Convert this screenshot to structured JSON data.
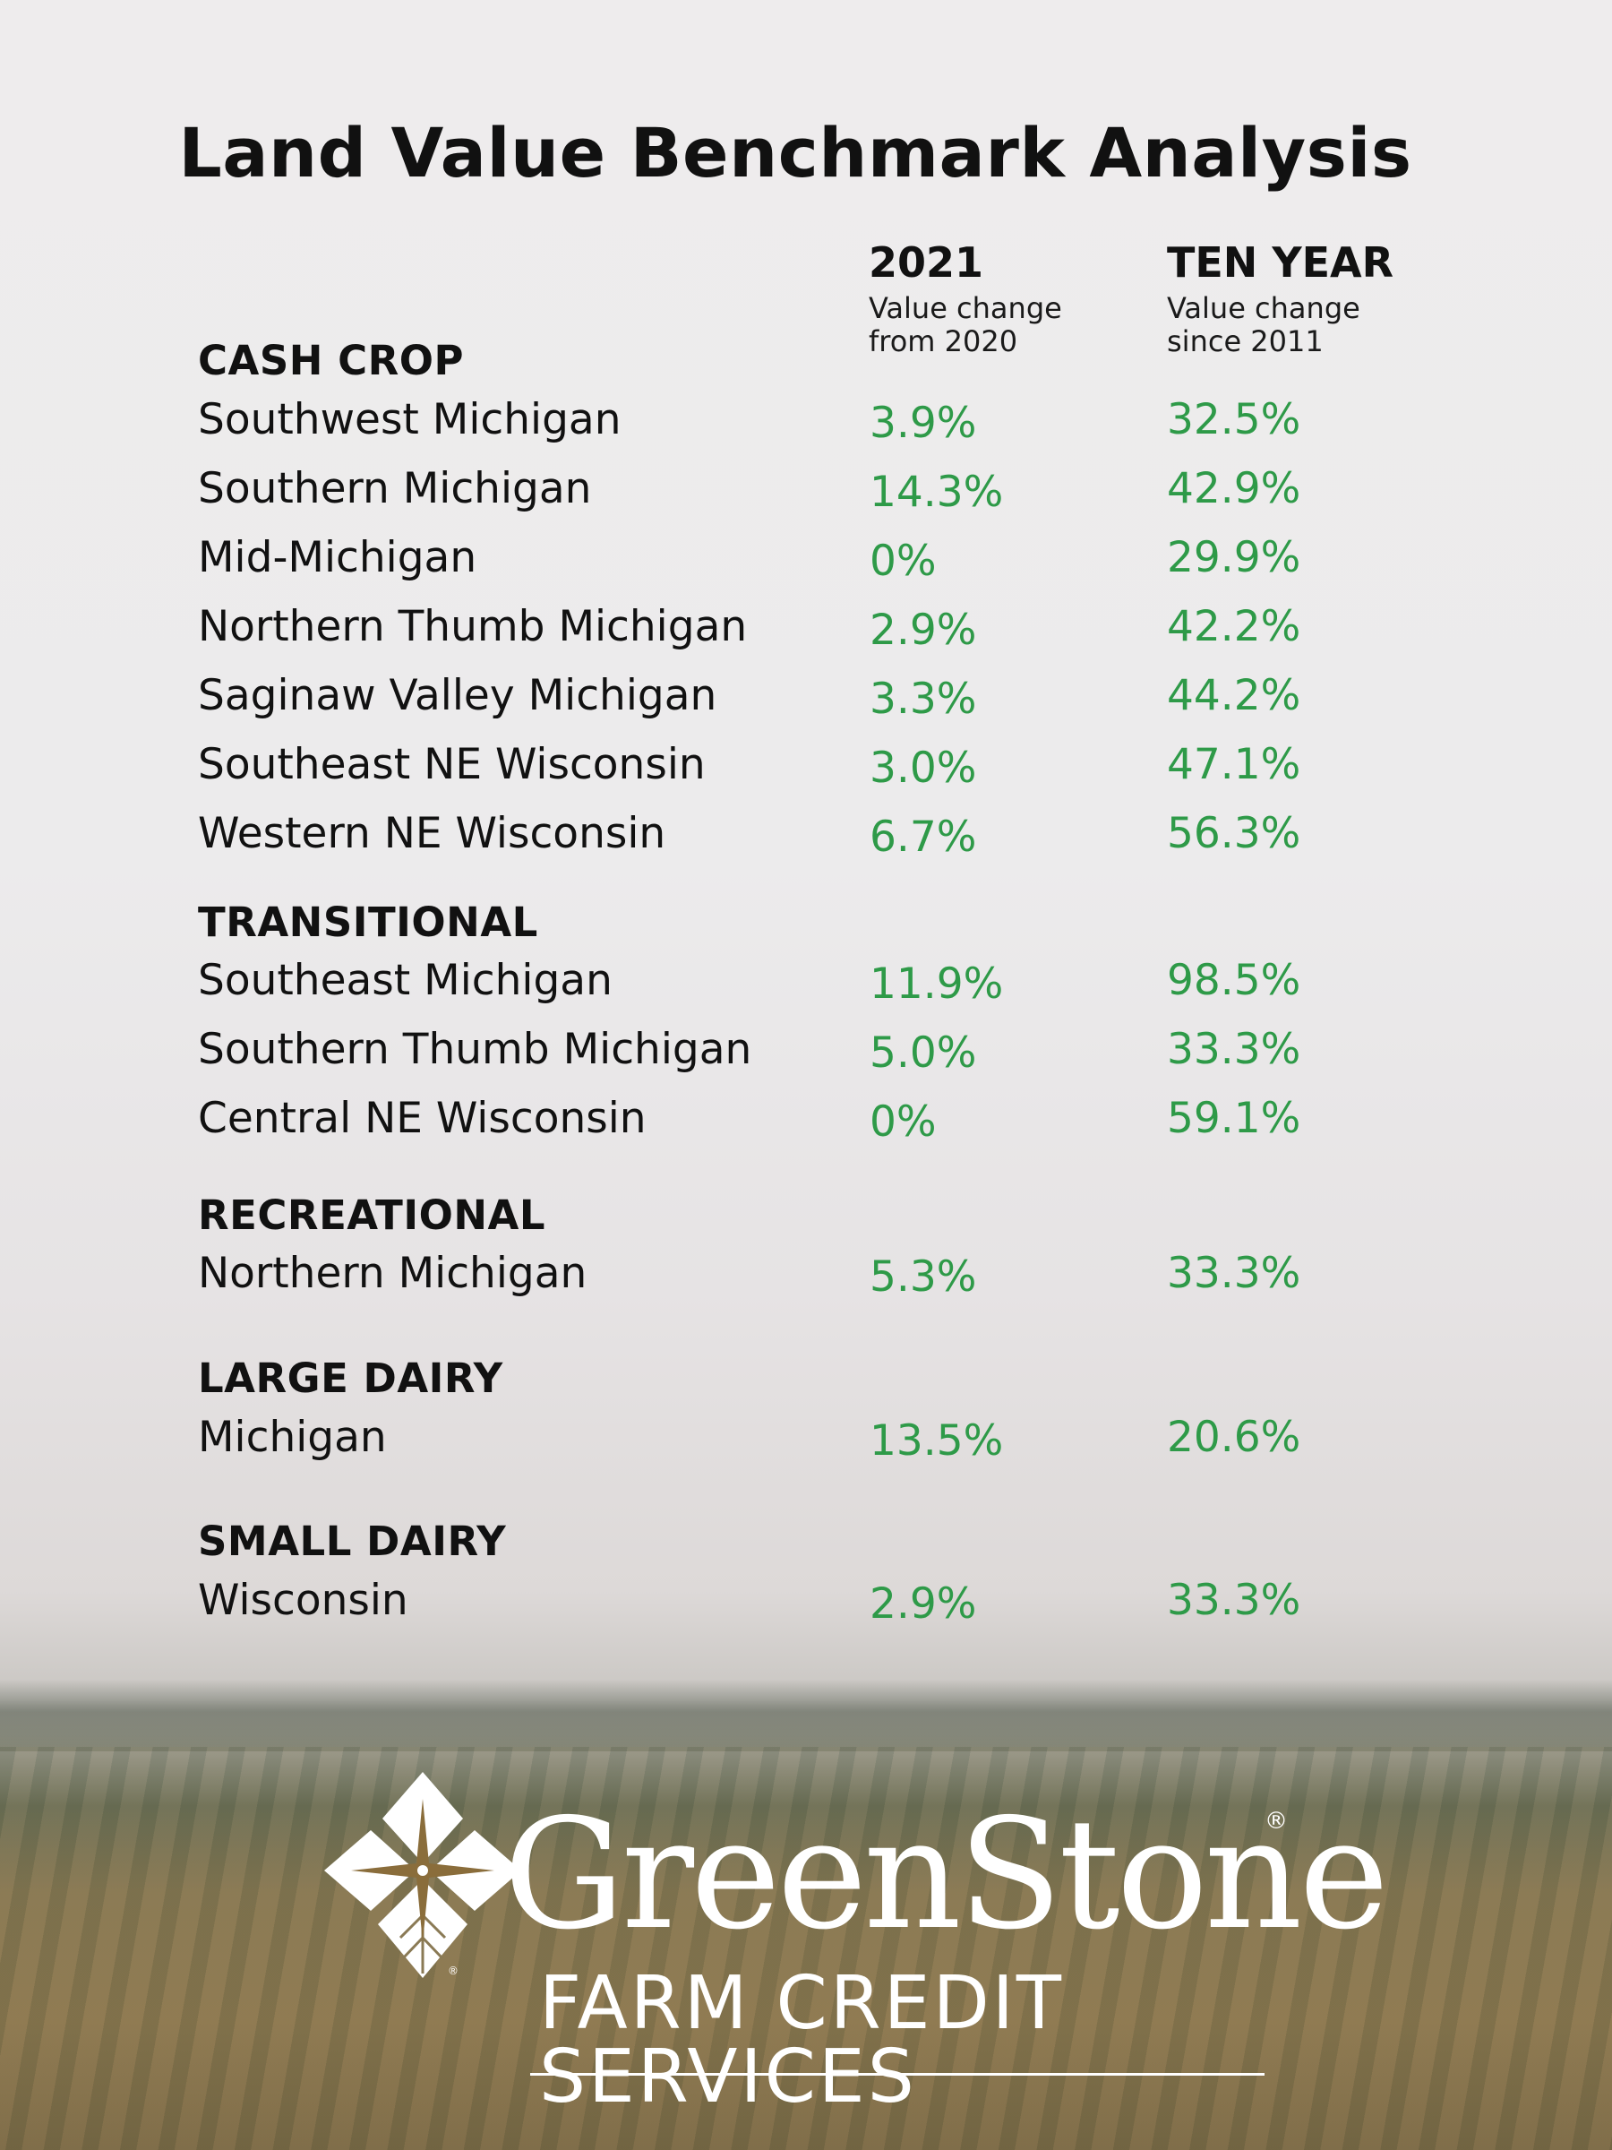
{
  "title": "Land Value Benchmark Analysis",
  "columns": {
    "col1": {
      "year": "2021",
      "sub1": "Value change",
      "sub2": "from 2020"
    },
    "col2": {
      "year": "TEN YEAR",
      "sub1": "Value change",
      "sub2": "since 2011"
    }
  },
  "sections": {
    "cash_crop": {
      "heading": "CASH CROP",
      "rows": [
        {
          "region": "Southwest Michigan",
          "change_2021": "3.9%",
          "change_10yr": "32.5%"
        },
        {
          "region": "Southern Michigan",
          "change_2021": "14.3%",
          "change_10yr": "42.9%"
        },
        {
          "region": "Mid-Michigan",
          "change_2021": "0%",
          "change_10yr": "29.9%"
        },
        {
          "region": "Northern Thumb Michigan",
          "change_2021": "2.9%",
          "change_10yr": "42.2%"
        },
        {
          "region": "Saginaw Valley Michigan",
          "change_2021": "3.3%",
          "change_10yr": "44.2%"
        },
        {
          "region": "Southeast NE Wisconsin",
          "change_2021": "3.0%",
          "change_10yr": "47.1%"
        },
        {
          "region": "Western NE Wisconsin",
          "change_2021": "6.7%",
          "change_10yr": "56.3%"
        }
      ]
    },
    "transitional": {
      "heading": "TRANSITIONAL",
      "rows": [
        {
          "region": "Southeast Michigan",
          "change_2021": "11.9%",
          "change_10yr": "98.5%"
        },
        {
          "region": "Southern Thumb Michigan",
          "change_2021": "5.0%",
          "change_10yr": "33.3%"
        },
        {
          "region": "Central NE Wisconsin",
          "change_2021": "0%",
          "change_10yr": "59.1%"
        }
      ]
    },
    "recreational": {
      "heading": "RECREATIONAL",
      "rows": [
        {
          "region": "Northern Michigan",
          "change_2021": "5.3%",
          "change_10yr": "33.3%"
        }
      ]
    },
    "large_dairy": {
      "heading": "LARGE DAIRY",
      "rows": [
        {
          "region": "Michigan",
          "change_2021": "13.5%",
          "change_10yr": "20.6%"
        }
      ]
    },
    "small_dairy": {
      "heading": "SMALL DAIRY",
      "rows": [
        {
          "region": "Wisconsin",
          "change_2021": "2.9%",
          "change_10yr": "33.3%"
        }
      ]
    }
  },
  "logo": {
    "name": "GreenStone",
    "registered": "®",
    "tagline": "FARM CREDIT SERVICES",
    "icon": "leaf-star-logo-icon"
  },
  "colors": {
    "value_green": "#2e9a48",
    "text": "#111111",
    "logo": "#ffffff",
    "logo_star": "#8a6d3b"
  }
}
